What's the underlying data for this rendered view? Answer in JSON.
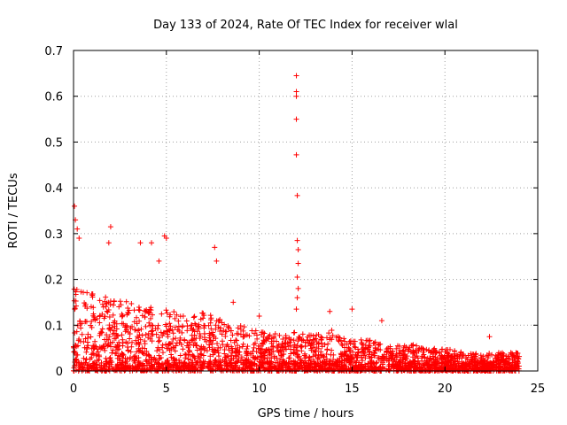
{
  "chart_data": {
    "type": "scatter",
    "title": "Day 133 of 2024, Rate Of TEC Index for receiver wlal",
    "xlabel": "GPS time / hours",
    "ylabel": "ROTI / TECUs",
    "xlim": [
      0,
      25
    ],
    "ylim": [
      0,
      0.7
    ],
    "xticks": [
      0,
      5,
      10,
      15,
      20,
      25
    ],
    "yticks": [
      0,
      0.1,
      0.2,
      0.3,
      0.4,
      0.5,
      0.6,
      0.7
    ],
    "xtick_labels": [
      "0",
      "5",
      "10",
      "15",
      "20",
      "25"
    ],
    "ytick_labels": [
      "0",
      "0.1",
      "0.2",
      "0.3",
      "0.4",
      "0.5",
      "0.6",
      "0.7"
    ],
    "grid": true,
    "marker": "+",
    "color": "#ff0000",
    "series": [
      {
        "name": "ROTI",
        "x_range": [
          0,
          24
        ],
        "typical_max_by_hour": [
          0.18,
          0.17,
          0.16,
          0.15,
          0.14,
          0.14,
          0.12,
          0.13,
          0.11,
          0.1,
          0.09,
          0.08,
          0.09,
          0.08,
          0.09,
          0.07,
          0.07,
          0.06,
          0.06,
          0.05,
          0.05,
          0.04,
          0.04,
          0.04
        ],
        "notable_points": [
          {
            "x": 0.05,
            "y": 0.36
          },
          {
            "x": 0.1,
            "y": 0.33
          },
          {
            "x": 0.2,
            "y": 0.31
          },
          {
            "x": 0.3,
            "y": 0.29
          },
          {
            "x": 2.0,
            "y": 0.315
          },
          {
            "x": 1.9,
            "y": 0.28
          },
          {
            "x": 3.6,
            "y": 0.28
          },
          {
            "x": 4.2,
            "y": 0.28
          },
          {
            "x": 4.9,
            "y": 0.295
          },
          {
            "x": 5.0,
            "y": 0.29
          },
          {
            "x": 4.6,
            "y": 0.24
          },
          {
            "x": 7.6,
            "y": 0.27
          },
          {
            "x": 7.7,
            "y": 0.24
          },
          {
            "x": 8.6,
            "y": 0.15
          },
          {
            "x": 10.0,
            "y": 0.12
          },
          {
            "x": 12.0,
            "y": 0.645
          },
          {
            "x": 12.0,
            "y": 0.61
          },
          {
            "x": 12.0,
            "y": 0.6
          },
          {
            "x": 12.0,
            "y": 0.55
          },
          {
            "x": 12.0,
            "y": 0.472
          },
          {
            "x": 12.05,
            "y": 0.383
          },
          {
            "x": 12.05,
            "y": 0.285
          },
          {
            "x": 12.1,
            "y": 0.265
          },
          {
            "x": 12.1,
            "y": 0.235
          },
          {
            "x": 12.05,
            "y": 0.205
          },
          {
            "x": 12.1,
            "y": 0.18
          },
          {
            "x": 12.05,
            "y": 0.16
          },
          {
            "x": 12.0,
            "y": 0.135
          },
          {
            "x": 13.8,
            "y": 0.13
          },
          {
            "x": 15.0,
            "y": 0.135
          },
          {
            "x": 16.6,
            "y": 0.11
          },
          {
            "x": 22.4,
            "y": 0.075
          }
        ]
      }
    ]
  }
}
